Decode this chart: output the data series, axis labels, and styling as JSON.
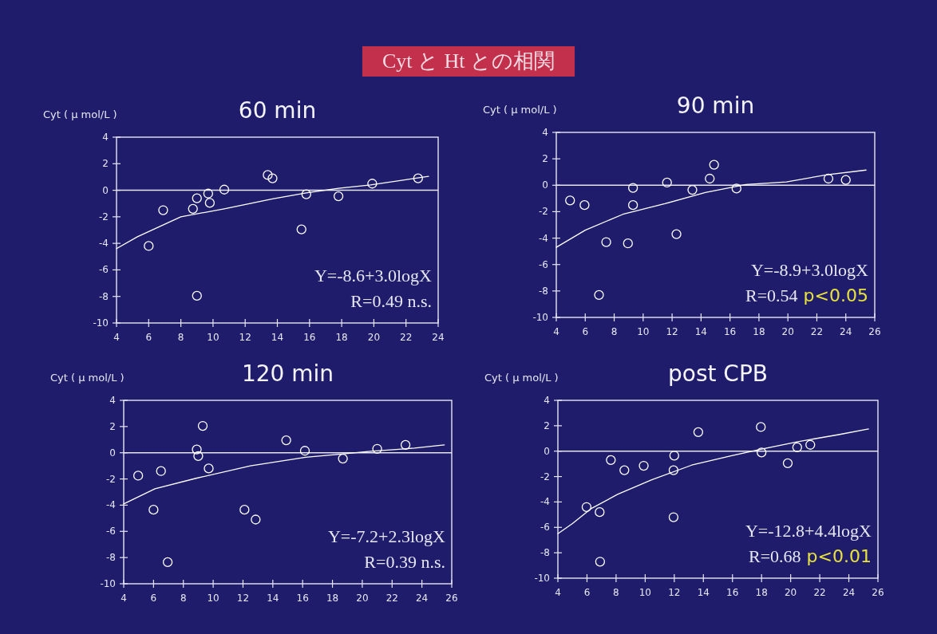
{
  "chart_data": [
    {
      "type": "other",
      "title": "Cyt と Ht との相関"
    },
    {
      "type": "scatter",
      "title": "60 min",
      "ylabel": "Cyt ( μ mol/L )",
      "xlim": [
        4,
        24
      ],
      "ylim": [
        -10,
        4
      ],
      "xticks": [
        4,
        6,
        8,
        10,
        12,
        14,
        16,
        18,
        20,
        22,
        24
      ],
      "yticks": [
        -10,
        -8,
        -6,
        -4,
        -2,
        0,
        2,
        4
      ],
      "ref_lines": [
        {
          "axis": "y",
          "value": 0
        }
      ],
      "annotations": [
        "Y=-8.6+3.0logX",
        "R=0.49 n.s."
      ],
      "series": [
        {
          "type": "scatter",
          "marker": "circle",
          "color": "#ffffff",
          "x": [
            6.0,
            6.9,
            8.75,
            9.0,
            9.7,
            9.8,
            10.7,
            13.4,
            13.7,
            15.5,
            15.8,
            17.8,
            19.9,
            22.75,
            9.0
          ],
          "values": [
            -4.2,
            -1.5,
            -1.4,
            -0.6,
            -0.25,
            -0.95,
            0.05,
            1.15,
            0.9,
            -2.95,
            -0.3,
            -0.45,
            0.5,
            0.9,
            -7.95
          ]
        },
        {
          "type": "line",
          "color": "#ffffff",
          "x": [
            4,
            5.3,
            8,
            10.7,
            13.7,
            15.8,
            17.8,
            19.8,
            23.4
          ],
          "values": [
            -4.4,
            -3.5,
            -2.0,
            -1.4,
            -0.65,
            -0.2,
            0.15,
            0.4,
            1.05
          ]
        }
      ]
    },
    {
      "type": "scatter",
      "title": "90 min",
      "ylabel": "Cyt ( μ mol/L )",
      "xlim": [
        4,
        26
      ],
      "ylim": [
        -10,
        4
      ],
      "xticks": [
        4,
        6,
        8,
        10,
        12,
        14,
        16,
        18,
        20,
        22,
        24,
        26
      ],
      "yticks": [
        -10,
        -8,
        -6,
        -4,
        -2,
        0,
        2,
        4
      ],
      "ref_lines": [
        {
          "axis": "y",
          "value": 0
        }
      ],
      "annotations": [
        "Y=-8.9+3.0logX",
        "R=0.54",
        "p<0.05"
      ],
      "series": [
        {
          "type": "scatter",
          "marker": "circle",
          "color": "#ffffff",
          "x": [
            4.95,
            5.95,
            7.45,
            6.95,
            8.95,
            9.3,
            9.3,
            11.65,
            12.3,
            13.4,
            14.6,
            14.9,
            16.45,
            22.8,
            24.0
          ],
          "values": [
            -1.15,
            -1.5,
            -4.3,
            -8.3,
            -4.4,
            -0.2,
            -1.5,
            0.2,
            -3.7,
            -0.35,
            0.5,
            1.55,
            -0.25,
            0.5,
            0.4
          ]
        },
        {
          "type": "line",
          "color": "#ffffff",
          "x": [
            4,
            6,
            8.6,
            11.5,
            14.3,
            17.1,
            19.9,
            22.7,
            25.4
          ],
          "values": [
            -4.7,
            -3.4,
            -2.2,
            -1.4,
            -0.55,
            0.05,
            0.25,
            0.8,
            1.15
          ]
        }
      ]
    },
    {
      "type": "scatter",
      "title": "120 min",
      "ylabel": "Cyt ( μ mol/L )",
      "xlim": [
        4,
        26
      ],
      "ylim": [
        -10,
        4
      ],
      "xticks": [
        4,
        6,
        8,
        10,
        12,
        14,
        16,
        18,
        20,
        22,
        24,
        26
      ],
      "yticks": [
        -10,
        -8,
        -6,
        -4,
        -2,
        0,
        2,
        4
      ],
      "ref_lines": [
        {
          "axis": "y",
          "value": 0
        }
      ],
      "annotations": [
        "Y=-7.2+2.3logX",
        "R=0.39 n.s."
      ],
      "series": [
        {
          "type": "scatter",
          "marker": "circle",
          "color": "#ffffff",
          "x": [
            4.97,
            6.5,
            6.0,
            6.95,
            8.9,
            9.0,
            9.3,
            9.7,
            12.1,
            12.85,
            14.9,
            16.15,
            18.7,
            21.0,
            22.9
          ],
          "values": [
            -1.75,
            -1.4,
            -4.35,
            -8.35,
            0.25,
            -0.25,
            2.05,
            -1.2,
            -4.35,
            -5.1,
            0.95,
            0.15,
            -0.45,
            0.3,
            0.6
          ]
        },
        {
          "type": "line",
          "color": "#ffffff",
          "x": [
            4,
            6.1,
            8.85,
            12.5,
            16.2,
            18.6,
            20.4,
            23.5,
            25.5
          ],
          "values": [
            -3.9,
            -2.75,
            -1.95,
            -1.0,
            -0.35,
            -0.1,
            0.1,
            0.35,
            0.6
          ]
        }
      ]
    },
    {
      "type": "scatter",
      "title": "post CPB",
      "ylabel": "Cyt ( μ mol/L )",
      "xlim": [
        4,
        26
      ],
      "ylim": [
        -10,
        4
      ],
      "xticks": [
        4,
        6,
        8,
        10,
        12,
        14,
        16,
        18,
        20,
        22,
        24,
        26
      ],
      "yticks": [
        -10,
        -8,
        -6,
        -4,
        -2,
        0,
        2,
        4
      ],
      "ref_lines": [
        {
          "axis": "y",
          "value": 0
        }
      ],
      "annotations": [
        "Y=-12.8+4.4logX",
        "R=0.68",
        "p<0.01"
      ],
      "series": [
        {
          "type": "scatter",
          "marker": "circle",
          "color": "#ffffff",
          "x": [
            5.97,
            6.87,
            6.9,
            7.64,
            8.57,
            9.9,
            12.0,
            11.95,
            11.95,
            13.65,
            17.95,
            18.0,
            19.8,
            20.45,
            21.35
          ],
          "values": [
            -4.4,
            -4.8,
            -8.7,
            -0.7,
            -1.5,
            -1.15,
            -0.35,
            -1.5,
            -5.2,
            1.5,
            1.9,
            -0.1,
            -0.95,
            0.3,
            0.5
          ]
        },
        {
          "type": "line",
          "color": "#ffffff",
          "x": [
            4,
            5,
            6.25,
            8.1,
            10.45,
            13.2,
            15.95,
            17.95,
            20.5,
            23.3,
            25.35
          ],
          "values": [
            -6.5,
            -5.7,
            -4.55,
            -3.4,
            -2.25,
            -1.1,
            -0.35,
            0.15,
            0.75,
            1.3,
            1.75
          ]
        }
      ]
    }
  ]
}
